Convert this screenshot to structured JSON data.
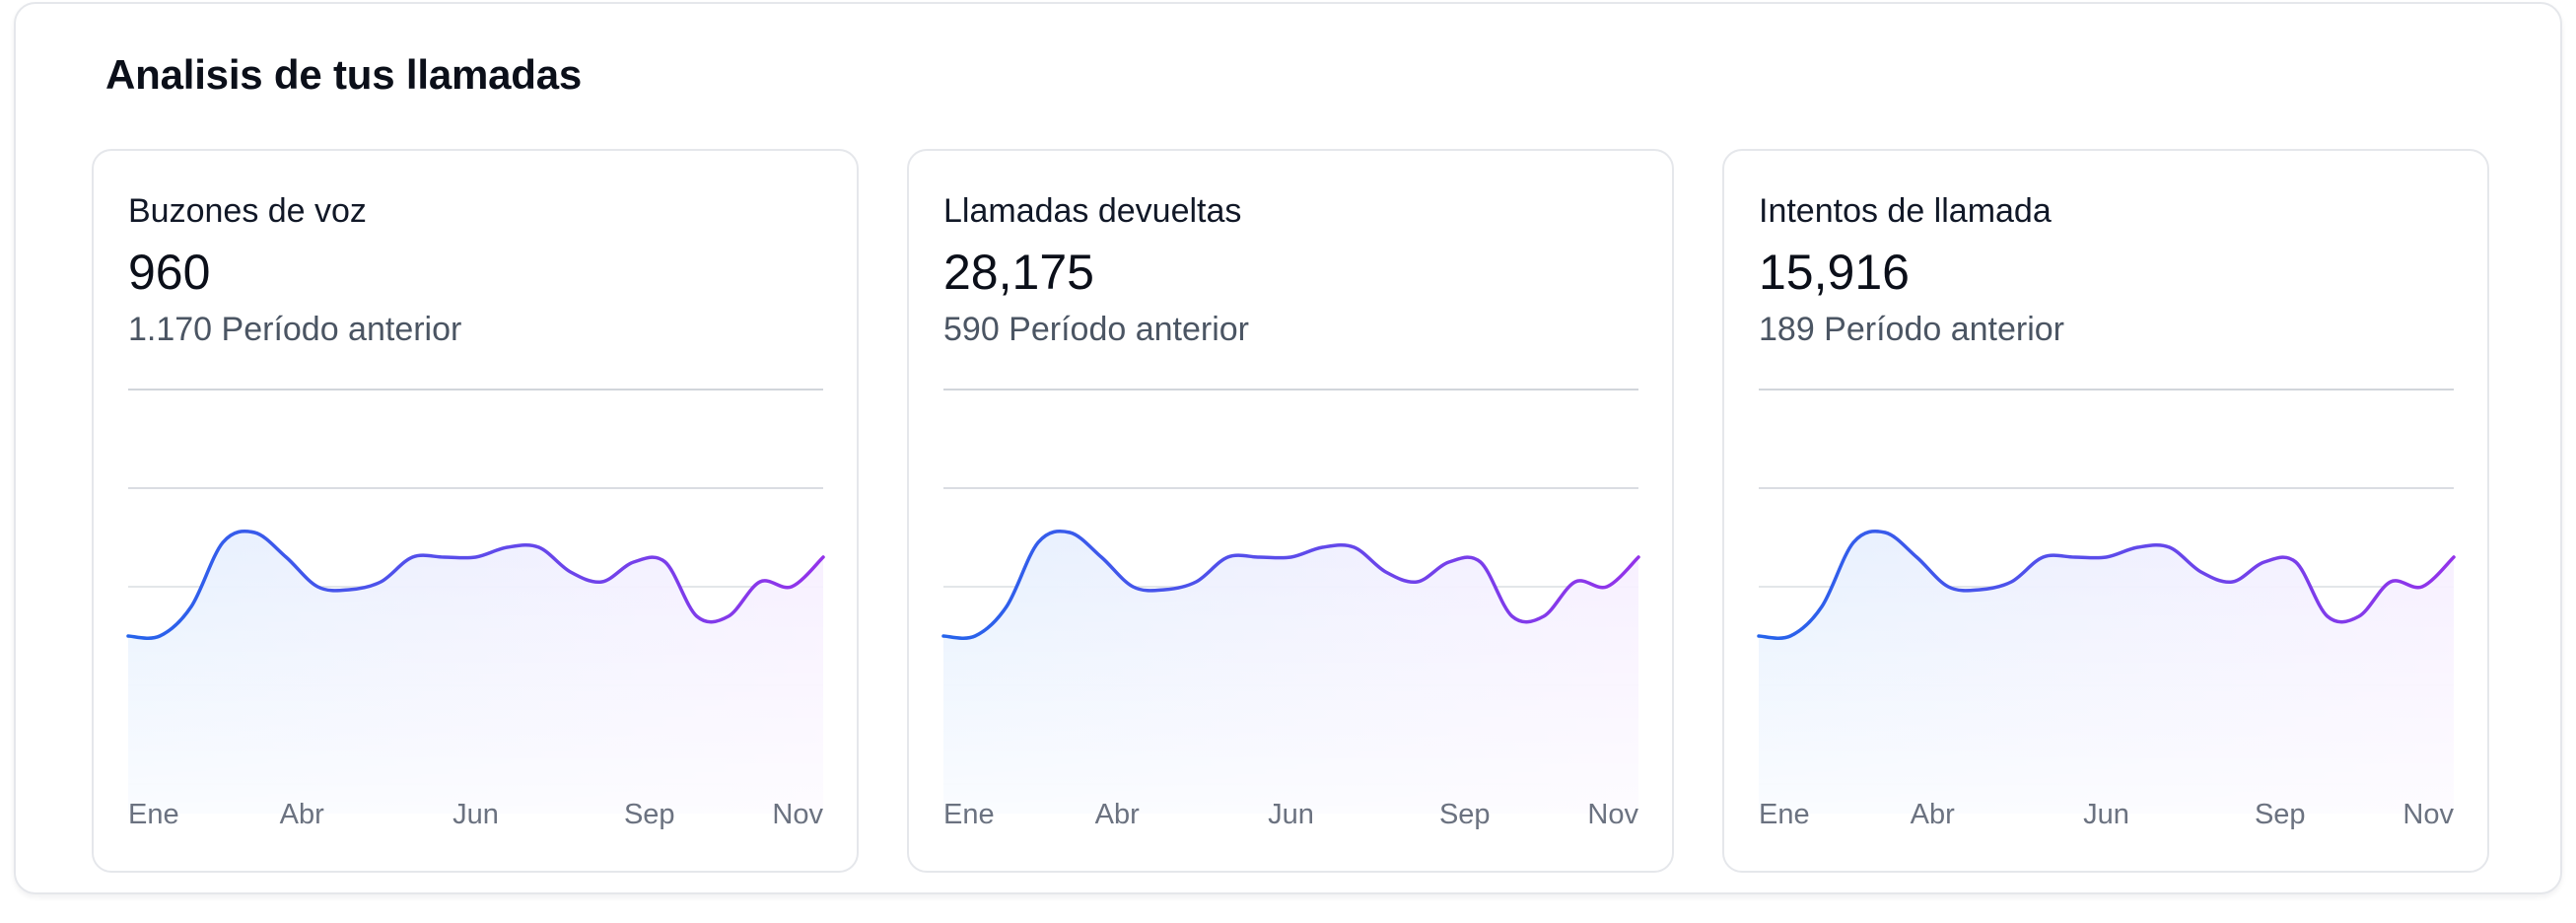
{
  "panel": {
    "title": "Analisis de tus llamadas"
  },
  "cards": [
    {
      "label": "Buzones de voz",
      "value": "960",
      "previous": "1.170 Período anterior"
    },
    {
      "label": "Llamadas devueltas",
      "value": "28,175",
      "previous": "590 Período anterior"
    },
    {
      "label": "Intentos de llamada",
      "value": "15,916",
      "previous": "189 Período anterior"
    }
  ],
  "colors": {
    "line_start": "#2563eb",
    "line_end": "#9333ea",
    "fill_start": "#dbeafe",
    "fill_end": "#f3e8ff",
    "grid": "#d1d5db",
    "tick_text": "#6b7280"
  },
  "chart_data": [
    {
      "type": "area",
      "x_ticks": [
        "Ene",
        "Abr",
        "Jun",
        "Sep",
        "Nov"
      ],
      "x": [
        0,
        0.5,
        1,
        1.5,
        2,
        2.5,
        3,
        3.5,
        4,
        4.5,
        5,
        5.5,
        6,
        6.5,
        7,
        7.5,
        8,
        8.5,
        9,
        9.5,
        10,
        10.5,
        11
      ],
      "values": [
        1.5,
        1.5,
        1.8,
        2.45,
        2.55,
        2.3,
        2.0,
        1.97,
        2.05,
        2.3,
        2.3,
        2.3,
        2.4,
        2.4,
        2.15,
        2.05,
        2.25,
        2.25,
        1.7,
        1.7,
        2.05,
        2.0,
        2.3
      ],
      "ylim": [
        0,
        4
      ],
      "grid": true
    },
    {
      "type": "area",
      "x_ticks": [
        "Ene",
        "Abr",
        "Jun",
        "Sep",
        "Nov"
      ],
      "x": [
        0,
        0.5,
        1,
        1.5,
        2,
        2.5,
        3,
        3.5,
        4,
        4.5,
        5,
        5.5,
        6,
        6.5,
        7,
        7.5,
        8,
        8.5,
        9,
        9.5,
        10,
        10.5,
        11
      ],
      "values": [
        1.5,
        1.5,
        1.8,
        2.45,
        2.55,
        2.3,
        2.0,
        1.97,
        2.05,
        2.3,
        2.3,
        2.3,
        2.4,
        2.4,
        2.15,
        2.05,
        2.25,
        2.25,
        1.7,
        1.7,
        2.05,
        2.0,
        2.3
      ],
      "ylim": [
        0,
        4
      ],
      "grid": true
    },
    {
      "type": "area",
      "x_ticks": [
        "Ene",
        "Abr",
        "Jun",
        "Sep",
        "Nov"
      ],
      "x": [
        0,
        0.5,
        1,
        1.5,
        2,
        2.5,
        3,
        3.5,
        4,
        4.5,
        5,
        5.5,
        6,
        6.5,
        7,
        7.5,
        8,
        8.5,
        9,
        9.5,
        10,
        10.5,
        11
      ],
      "values": [
        1.5,
        1.5,
        1.8,
        2.45,
        2.55,
        2.3,
        2.0,
        1.97,
        2.05,
        2.3,
        2.3,
        2.3,
        2.4,
        2.4,
        2.15,
        2.05,
        2.25,
        2.25,
        1.7,
        1.7,
        2.05,
        2.0,
        2.3
      ],
      "ylim": [
        0,
        4
      ],
      "grid": true
    }
  ]
}
